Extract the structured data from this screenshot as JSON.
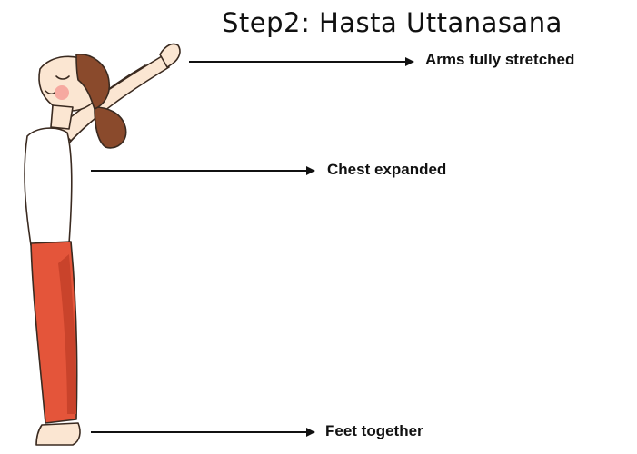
{
  "diagram": {
    "title": "Step2: Hasta Uttanasana",
    "annotations": [
      {
        "label": "Arms fully stretched",
        "target": "arms"
      },
      {
        "label": "Chest expanded",
        "target": "chest"
      },
      {
        "label": "Feet together",
        "target": "feet"
      }
    ],
    "colors": {
      "pants": "#e4553a",
      "pants_shadow": "#c9432b",
      "hair": "#8a4a2c",
      "skin": "#fbe6d2",
      "cheek": "#f6a9a0",
      "tank_top": "#ffffff",
      "arrow": "#111111"
    }
  }
}
